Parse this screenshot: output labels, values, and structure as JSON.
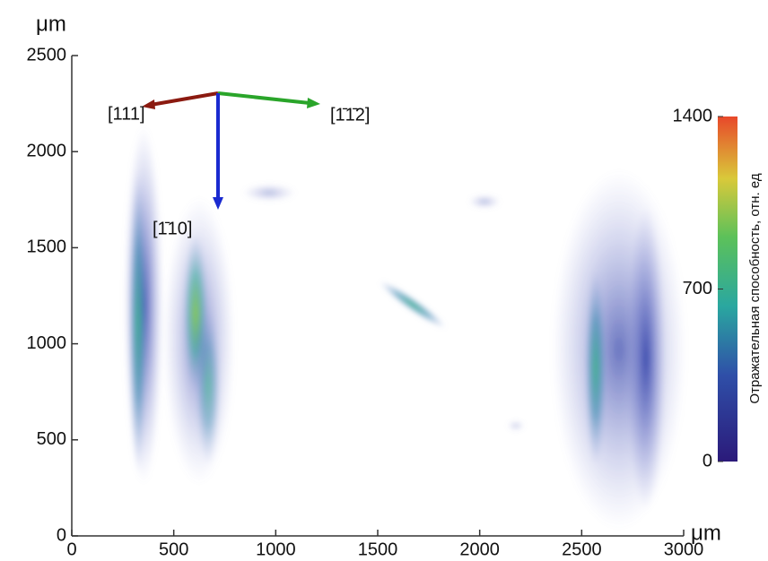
{
  "chart_data": {
    "type": "image",
    "x_label": "μm",
    "y_label": "μm",
    "xlim": [
      0,
      3000
    ],
    "xticks": [
      0,
      500,
      1000,
      1500,
      2000,
      2500,
      3000
    ],
    "ylim": [
      0,
      2500
    ],
    "yticks": [
      0,
      500,
      1000,
      1500,
      2000,
      2500
    ],
    "colorbar": {
      "label": "Отражательная способность, отн. ед",
      "lim": [
        0,
        1400
      ],
      "ticks": [
        0,
        700,
        1400
      ]
    },
    "annotations": [
      "[111]",
      "[1̄1̄2]",
      "[1̄10]"
    ]
  }
}
